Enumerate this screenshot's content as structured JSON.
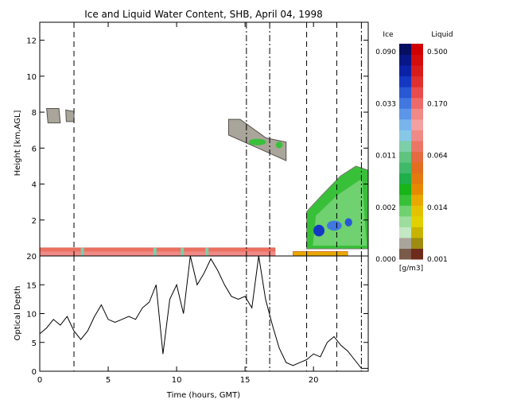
{
  "chart_data": [
    {
      "type": "heatmap",
      "title": "Ice and Liquid Water Content, SHB, April 04, 1998",
      "xlabel": "",
      "ylabel": "Height [km,AGL]",
      "xlim": [
        0,
        24
      ],
      "ylim": [
        0,
        13
      ],
      "yticks": [
        2,
        4,
        6,
        8,
        10,
        12
      ],
      "ytick_labels": [
        "2",
        "4",
        "6",
        "8",
        "10",
        "12"
      ],
      "vertical_lines": [
        {
          "x": 2.5,
          "style": "dashed"
        },
        {
          "x": 15.1,
          "style": "dash-dot"
        },
        {
          "x": 16.8,
          "style": "dash-dot"
        },
        {
          "x": 19.5,
          "style": "dashed"
        },
        {
          "x": 21.7,
          "style": "dashed"
        },
        {
          "x": 23.5,
          "style": "dash-dot"
        }
      ],
      "features": [
        {
          "kind": "liquid-layer",
          "x_range": [
            0,
            17.2
          ],
          "height_range": [
            0.0,
            0.45
          ]
        },
        {
          "kind": "liquid-layer",
          "x_range": [
            18.5,
            22.5
          ],
          "height_range": [
            0.0,
            0.25
          ]
        },
        {
          "kind": "ice-cloud",
          "x_range": [
            0.5,
            2.5
          ],
          "height_range": [
            7.4,
            8.2
          ]
        },
        {
          "kind": "ice-cloud",
          "x_range": [
            13.8,
            18.0
          ],
          "height_range": [
            5.3,
            7.6
          ]
        },
        {
          "kind": "ice-cloud",
          "x_range": [
            19.5,
            24.0
          ],
          "height_range": [
            0.4,
            5.0
          ]
        }
      ],
      "colorbar": {
        "ice_label": "Ice",
        "liquid_label": "Liquid",
        "unit": "[g/m3]",
        "ice_ticks": [
          "0.090",
          "0.033",
          "0.011",
          "0.002",
          "0.000"
        ],
        "liquid_ticks": [
          "0.500",
          "0.170",
          "0.064",
          "0.014",
          "0.001"
        ],
        "ice_colors": [
          "#7a5a48",
          "#aaa59a",
          "#c3e8c3",
          "#9ddd9d",
          "#6fd16f",
          "#39c039",
          "#18b418",
          "#1faf4b",
          "#41b96a",
          "#5fc47f",
          "#7ccfa8",
          "#86c8e6",
          "#79b5ec",
          "#5d95e8",
          "#4177e0",
          "#2858d4",
          "#1538c4",
          "#0b22a8",
          "#081788",
          "#050f60"
        ],
        "liquid_colors": [
          "#6e2a1a",
          "#9c8c10",
          "#c8b400",
          "#e3d000",
          "#e4c200",
          "#e8a800",
          "#e58a00",
          "#e37a10",
          "#e06e1e",
          "#e46a40",
          "#ec7666",
          "#f08a86",
          "#f2a0a0",
          "#ef8a86",
          "#ec6a6a",
          "#e84c4c",
          "#e02f2f",
          "#d81c1c",
          "#d40c0c",
          "#d00000"
        ]
      }
    },
    {
      "type": "line",
      "xlabel": "Time (hours, GMT)",
      "ylabel": "Optical Depth",
      "xlim": [
        0,
        24
      ],
      "ylim": [
        0,
        20
      ],
      "xticks": [
        0,
        5,
        10,
        15,
        20
      ],
      "xtick_labels": [
        "0",
        "5",
        "10",
        "15",
        "20"
      ],
      "yticks": [
        0,
        5,
        10,
        15,
        20
      ],
      "ytick_labels": [
        "0",
        "5",
        "10",
        "15",
        "20"
      ],
      "x": [
        0.0,
        0.5,
        1.0,
        1.5,
        2.0,
        2.5,
        3.0,
        3.5,
        4.0,
        4.5,
        5.0,
        5.5,
        6.0,
        6.5,
        7.0,
        7.5,
        8.0,
        8.5,
        9.0,
        9.5,
        10.0,
        10.5,
        11.0,
        11.5,
        12.0,
        12.5,
        13.0,
        13.5,
        14.0,
        14.5,
        15.0,
        15.5,
        16.0,
        16.5,
        17.0,
        17.5,
        18.0,
        18.5,
        19.0,
        19.5,
        20.0,
        20.5,
        21.0,
        21.5,
        22.0,
        22.5,
        23.0,
        23.5,
        24.0
      ],
      "series": [
        {
          "values": [
            6.5,
            7.5,
            9.0,
            8.0,
            9.5,
            7.0,
            5.5,
            7.0,
            9.5,
            11.5,
            9.0,
            8.5,
            9.0,
            9.5,
            9.0,
            11.0,
            12.0,
            15.0,
            3.0,
            12.5,
            15.0,
            10.0,
            20.0,
            15.0,
            17.0,
            19.5,
            17.5,
            15.0,
            13.0,
            12.5,
            13.0,
            11.0,
            20.0,
            12.5,
            8.0,
            4.0,
            1.5,
            1.0,
            1.5,
            2.0,
            3.0,
            2.5,
            5.0,
            6.0,
            4.5,
            3.5,
            2.0,
            0.5,
            0.5
          ]
        }
      ],
      "vertical_lines": [
        {
          "x": 2.5,
          "style": "dashed"
        },
        {
          "x": 15.1,
          "style": "dash-dot"
        },
        {
          "x": 16.8,
          "style": "dash-dot"
        },
        {
          "x": 19.5,
          "style": "dashed"
        },
        {
          "x": 21.7,
          "style": "dashed"
        },
        {
          "x": 23.5,
          "style": "dash-dot"
        }
      ]
    }
  ]
}
